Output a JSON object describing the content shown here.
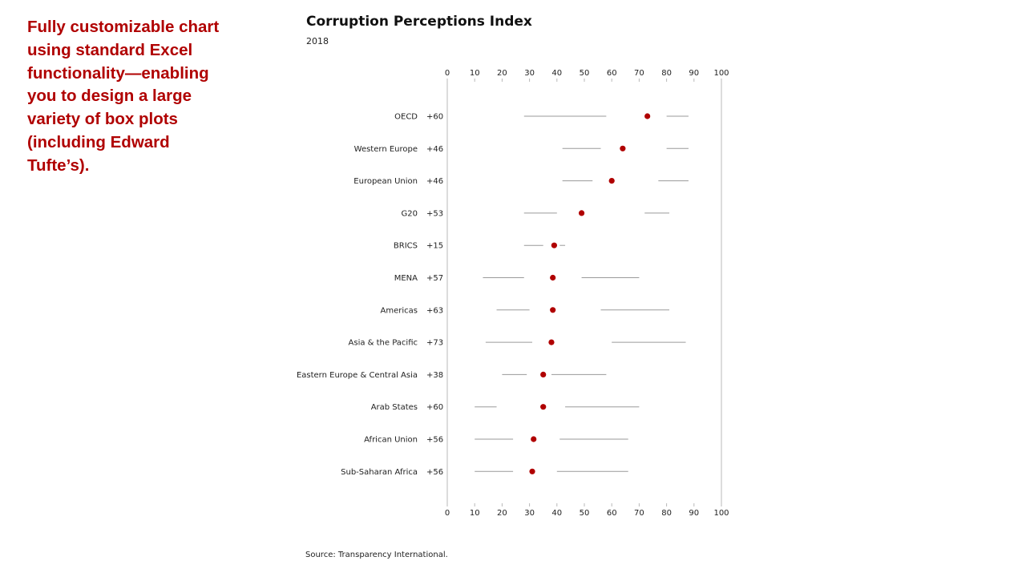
{
  "caption": "Fully customizable chart using standard Excel functionality—enabling you to design a large variety of box plots (including Edward Tufte’s).",
  "source": "Source: Transparency International.",
  "colors": {
    "accent": "#b00000",
    "line": "#9a9a9a",
    "dot": "#b00000"
  },
  "chart_data": {
    "type": "scatter",
    "title": "Corruption Perceptions Index",
    "subtitle": "2018",
    "xlim": [
      0,
      100
    ],
    "xticks": [
      0,
      10,
      20,
      30,
      40,
      50,
      60,
      70,
      80,
      90,
      100
    ],
    "grid": false,
    "legend": "none",
    "rows": [
      {
        "region": "OECD",
        "range_label": "+60",
        "whisker_low": [
          28,
          58
        ],
        "median": 73,
        "whisker_high": [
          80,
          88
        ]
      },
      {
        "region": "Western Europe",
        "range_label": "+46",
        "whisker_low": [
          42,
          56
        ],
        "median": 64,
        "whisker_high": [
          80,
          88
        ]
      },
      {
        "region": "European Union",
        "range_label": "+46",
        "whisker_low": [
          42,
          53
        ],
        "median": 60,
        "whisker_high": [
          77,
          88
        ]
      },
      {
        "region": "G20",
        "range_label": "+53",
        "whisker_low": [
          28,
          40
        ],
        "median": 49,
        "whisker_high": [
          72,
          81
        ]
      },
      {
        "region": "BRICS",
        "range_label": "+15",
        "whisker_low": [
          28,
          35
        ],
        "median": 39,
        "whisker_high": [
          41,
          43
        ]
      },
      {
        "region": "MENA",
        "range_label": "+57",
        "whisker_low": [
          13,
          28
        ],
        "median": 38.5,
        "whisker_high": [
          49,
          70
        ]
      },
      {
        "region": "Americas",
        "range_label": "+63",
        "whisker_low": [
          18,
          30
        ],
        "median": 38.5,
        "whisker_high": [
          56,
          81
        ]
      },
      {
        "region": "Asia & the Pacific",
        "range_label": "+73",
        "whisker_low": [
          14,
          31
        ],
        "median": 38,
        "whisker_high": [
          60,
          87
        ]
      },
      {
        "region": "Eastern Europe & Central Asia",
        "range_label": "+38",
        "whisker_low": [
          20,
          29
        ],
        "median": 35,
        "whisker_high": [
          38,
          58
        ]
      },
      {
        "region": "Arab States",
        "range_label": "+60",
        "whisker_low": [
          10,
          18
        ],
        "median": 35,
        "whisker_high": [
          43,
          70
        ]
      },
      {
        "region": "African Union",
        "range_label": "+56",
        "whisker_low": [
          10,
          24
        ],
        "median": 31.5,
        "whisker_high": [
          41,
          66
        ]
      },
      {
        "region": "Sub-Saharan Africa",
        "range_label": "+56",
        "whisker_low": [
          10,
          24
        ],
        "median": 31,
        "whisker_high": [
          40,
          66
        ]
      }
    ]
  }
}
